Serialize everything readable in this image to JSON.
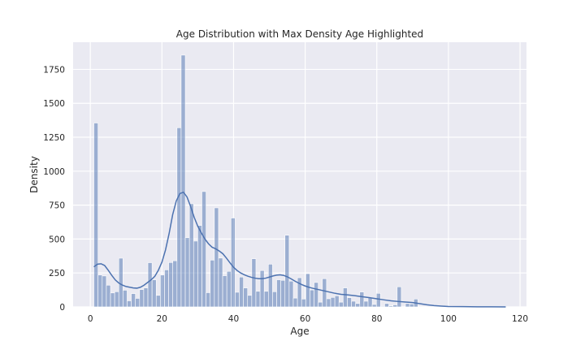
{
  "chart_data": {
    "type": "bar",
    "title": "Age Distribution with Max Density Age Highlighted",
    "xlabel": "Age",
    "ylabel": "Density",
    "xlim": [
      -4.8,
      121.8
    ],
    "ylim": [
      0,
      1950
    ],
    "xticks": [
      0,
      20,
      40,
      60,
      80,
      100,
      120
    ],
    "yticks": [
      0,
      250,
      500,
      750,
      1000,
      1250,
      1500,
      1750
    ],
    "bin_width": 1.16,
    "grid": true,
    "legend": "none",
    "bar_color": "#4C72B0",
    "line_color": "#4C72B0",
    "background": "#EAEAF2",
    "bins": [
      {
        "x": 1.0,
        "count": 1355
      },
      {
        "x": 2.16,
        "count": 235
      },
      {
        "x": 3.32,
        "count": 228
      },
      {
        "x": 4.48,
        "count": 160
      },
      {
        "x": 5.64,
        "count": 103
      },
      {
        "x": 6.8,
        "count": 112
      },
      {
        "x": 7.96,
        "count": 359
      },
      {
        "x": 9.12,
        "count": 123
      },
      {
        "x": 10.28,
        "count": 45
      },
      {
        "x": 11.44,
        "count": 98
      },
      {
        "x": 12.6,
        "count": 63
      },
      {
        "x": 13.76,
        "count": 128
      },
      {
        "x": 14.92,
        "count": 140
      },
      {
        "x": 16.08,
        "count": 326
      },
      {
        "x": 17.24,
        "count": 200
      },
      {
        "x": 18.4,
        "count": 85
      },
      {
        "x": 19.56,
        "count": 235
      },
      {
        "x": 20.72,
        "count": 273
      },
      {
        "x": 21.88,
        "count": 327
      },
      {
        "x": 23.04,
        "count": 340
      },
      {
        "x": 24.2,
        "count": 1320
      },
      {
        "x": 25.36,
        "count": 1855
      },
      {
        "x": 26.52,
        "count": 510
      },
      {
        "x": 27.68,
        "count": 760
      },
      {
        "x": 28.84,
        "count": 485
      },
      {
        "x": 30.0,
        "count": 600
      },
      {
        "x": 31.16,
        "count": 850
      },
      {
        "x": 32.32,
        "count": 105
      },
      {
        "x": 33.48,
        "count": 345
      },
      {
        "x": 34.64,
        "count": 730
      },
      {
        "x": 35.8,
        "count": 360
      },
      {
        "x": 36.96,
        "count": 230
      },
      {
        "x": 38.12,
        "count": 262
      },
      {
        "x": 39.28,
        "count": 655
      },
      {
        "x": 40.44,
        "count": 108
      },
      {
        "x": 41.6,
        "count": 220
      },
      {
        "x": 42.76,
        "count": 140
      },
      {
        "x": 43.92,
        "count": 85
      },
      {
        "x": 45.08,
        "count": 355
      },
      {
        "x": 46.24,
        "count": 115
      },
      {
        "x": 47.4,
        "count": 268
      },
      {
        "x": 48.56,
        "count": 115
      },
      {
        "x": 49.72,
        "count": 315
      },
      {
        "x": 50.88,
        "count": 112
      },
      {
        "x": 52.04,
        "count": 200
      },
      {
        "x": 53.2,
        "count": 196
      },
      {
        "x": 54.36,
        "count": 528
      },
      {
        "x": 55.52,
        "count": 190
      },
      {
        "x": 56.68,
        "count": 65
      },
      {
        "x": 57.84,
        "count": 215
      },
      {
        "x": 59.0,
        "count": 58
      },
      {
        "x": 60.16,
        "count": 245
      },
      {
        "x": 61.32,
        "count": 125
      },
      {
        "x": 62.48,
        "count": 180
      },
      {
        "x": 63.64,
        "count": 35
      },
      {
        "x": 64.8,
        "count": 208
      },
      {
        "x": 65.96,
        "count": 60
      },
      {
        "x": 67.12,
        "count": 70
      },
      {
        "x": 68.28,
        "count": 82
      },
      {
        "x": 69.44,
        "count": 35
      },
      {
        "x": 70.6,
        "count": 140
      },
      {
        "x": 71.76,
        "count": 68
      },
      {
        "x": 72.92,
        "count": 42
      },
      {
        "x": 74.08,
        "count": 25
      },
      {
        "x": 75.24,
        "count": 110
      },
      {
        "x": 76.4,
        "count": 42
      },
      {
        "x": 77.56,
        "count": 68
      },
      {
        "x": 78.72,
        "count": 18
      },
      {
        "x": 79.88,
        "count": 100
      },
      {
        "x": 81.04,
        "count": 5
      },
      {
        "x": 82.2,
        "count": 25
      },
      {
        "x": 83.36,
        "count": 8
      },
      {
        "x": 84.52,
        "count": 15
      },
      {
        "x": 85.68,
        "count": 148
      },
      {
        "x": 86.84,
        "count": 2
      },
      {
        "x": 88.0,
        "count": 25
      },
      {
        "x": 89.16,
        "count": 22
      },
      {
        "x": 90.32,
        "count": 58
      },
      {
        "x": 91.48,
        "count": 2
      },
      {
        "x": 92.64,
        "count": 2
      }
    ],
    "kde": [
      [
        1.0,
        295
      ],
      [
        2.0,
        315
      ],
      [
        3.0,
        318
      ],
      [
        4.0,
        305
      ],
      [
        5.0,
        270
      ],
      [
        6.0,
        232
      ],
      [
        7.0,
        198
      ],
      [
        8.0,
        175
      ],
      [
        9.0,
        160
      ],
      [
        10.0,
        150
      ],
      [
        11.0,
        145
      ],
      [
        12.0,
        140
      ],
      [
        13.0,
        138
      ],
      [
        14.0,
        145
      ],
      [
        15.0,
        160
      ],
      [
        16.0,
        180
      ],
      [
        17.0,
        200
      ],
      [
        18.0,
        225
      ],
      [
        19.0,
        270
      ],
      [
        20.0,
        330
      ],
      [
        21.0,
        420
      ],
      [
        22.0,
        540
      ],
      [
        23.0,
        680
      ],
      [
        24.0,
        780
      ],
      [
        25.0,
        835
      ],
      [
        26.0,
        845
      ],
      [
        27.0,
        810
      ],
      [
        28.0,
        740
      ],
      [
        29.0,
        660
      ],
      [
        30.0,
        595
      ],
      [
        31.0,
        545
      ],
      [
        32.0,
        500
      ],
      [
        33.0,
        465
      ],
      [
        34.0,
        440
      ],
      [
        35.0,
        428
      ],
      [
        36.0,
        412
      ],
      [
        37.0,
        392
      ],
      [
        38.0,
        360
      ],
      [
        39.0,
        325
      ],
      [
        40.0,
        292
      ],
      [
        41.0,
        268
      ],
      [
        42.0,
        250
      ],
      [
        43.0,
        237
      ],
      [
        44.0,
        226
      ],
      [
        45.0,
        218
      ],
      [
        46.0,
        212
      ],
      [
        47.0,
        208
      ],
      [
        48.0,
        208
      ],
      [
        49.0,
        212
      ],
      [
        50.0,
        220
      ],
      [
        51.0,
        228
      ],
      [
        52.0,
        234
      ],
      [
        53.0,
        236
      ],
      [
        54.0,
        232
      ],
      [
        55.0,
        222
      ],
      [
        56.0,
        208
      ],
      [
        57.0,
        192
      ],
      [
        58.0,
        178
      ],
      [
        59.0,
        165
      ],
      [
        60.0,
        154
      ],
      [
        61.0,
        145
      ],
      [
        62.0,
        138
      ],
      [
        63.0,
        132
      ],
      [
        64.0,
        126
      ],
      [
        65.0,
        120
      ],
      [
        66.0,
        114
      ],
      [
        67.0,
        108
      ],
      [
        68.0,
        102
      ],
      [
        69.0,
        97
      ],
      [
        70.0,
        93
      ],
      [
        72.0,
        88
      ],
      [
        74.0,
        82
      ],
      [
        76.0,
        75
      ],
      [
        78.0,
        68
      ],
      [
        80.0,
        60
      ],
      [
        82.0,
        52
      ],
      [
        84.0,
        45
      ],
      [
        86.0,
        40
      ],
      [
        88.0,
        36
      ],
      [
        90.0,
        32
      ],
      [
        92.0,
        24
      ],
      [
        94.0,
        16
      ],
      [
        96.0,
        10
      ],
      [
        98.0,
        6
      ],
      [
        100.0,
        3
      ],
      [
        104.0,
        2
      ],
      [
        108.0,
        1
      ],
      [
        112.0,
        1
      ],
      [
        116.0,
        0
      ]
    ]
  }
}
